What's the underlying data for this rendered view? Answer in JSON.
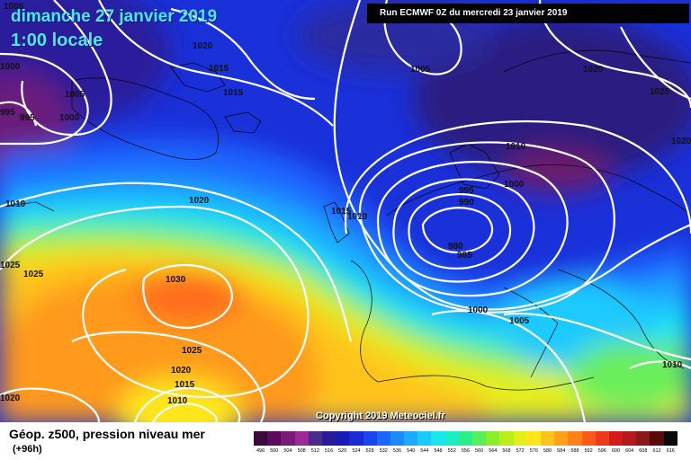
{
  "header": {
    "date": "dimanche 27 janvier 2019",
    "time": "1:00 locale",
    "run": "Run ECMWF 0Z du mercredi 23 janvier 2019"
  },
  "copyright": "Copyright 2019 Meteociel.fr",
  "footer": {
    "title": "Géop. z500, pression niveau mer",
    "subtitle": "(+96h)"
  },
  "isobar_labels": [
    "1005",
    "1000",
    "995",
    "995",
    "1005",
    "1000",
    "1020",
    "1015",
    "1015",
    "1010",
    "1020",
    "1025",
    "1025",
    "1030",
    "1025",
    "1020",
    "1015",
    "1010",
    "1020",
    "1015",
    "1010",
    "1005",
    "1020",
    "1025",
    "1020",
    "1010",
    "1000",
    "995",
    "990",
    "985",
    "980",
    "1000",
    "1005",
    "1010"
  ],
  "color_scale": {
    "values": [
      "496",
      "500",
      "504",
      "508",
      "512",
      "516",
      "520",
      "524",
      "528",
      "532",
      "536",
      "540",
      "544",
      "548",
      "552",
      "556",
      "560",
      "564",
      "568",
      "572",
      "576",
      "580",
      "584",
      "588",
      "592",
      "596",
      "600",
      "604",
      "608",
      "612",
      "616"
    ],
    "colors": [
      "#3a0a3a",
      "#5c0a5c",
      "#7a1a7a",
      "#9a2a9a",
      "#4a2a8a",
      "#2a1a9a",
      "#1a1ab4",
      "#1a2ad6",
      "#1a44ee",
      "#1a66ff",
      "#1a8aff",
      "#1aaaff",
      "#1acaff",
      "#1ae6ee",
      "#1aeec4",
      "#2aee8a",
      "#5aee5a",
      "#8aee2a",
      "#baee1a",
      "#e6ee1a",
      "#ffe61a",
      "#ffc41a",
      "#ffa21a",
      "#ff801a",
      "#ff5a1a",
      "#ee3a1a",
      "#d41a1a",
      "#b41a1a",
      "#8a1a1a",
      "#5a0a0a",
      "#0a0a0a"
    ]
  }
}
